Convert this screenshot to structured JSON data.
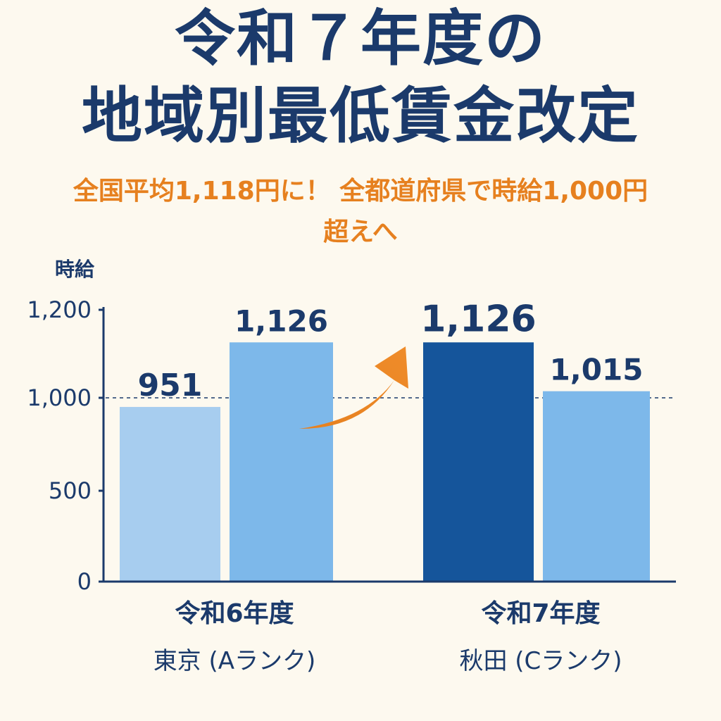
{
  "title": [
    "令和７年度の",
    "地域別最低賃金改定"
  ],
  "subtitle": [
    "全国平均1,118円に！ 全都道府県で時給1,000円",
    "超えへ"
  ],
  "colors": {
    "background": "#fdf9ef",
    "title": "#1b3a6b",
    "subtitle": "#e6801f",
    "axis": "#1b3a6b",
    "bar_light": "#a7cdef",
    "bar_mid": "#7db8ea",
    "bar_dark": "#15559b",
    "arrow": "#e6801f"
  },
  "chart_data": {
    "type": "bar",
    "ylabel": "時給",
    "yticks": [
      0,
      500,
      1000,
      1200
    ],
    "ytick_labels": [
      "0",
      "500",
      "1,000",
      "1,200"
    ],
    "reference_line": 1000,
    "groups": [
      {
        "label": "令和6年度",
        "sublabel": "東京 (Aランク)",
        "bars": [
          {
            "value": 951,
            "label": "951",
            "color": "#a7cdef"
          },
          {
            "value": 1126,
            "label": "1,126",
            "color": "#7db8ea"
          }
        ]
      },
      {
        "label": "令和7年度",
        "sublabel": "秋田 (Cランク)",
        "bars": [
          {
            "value": 1126,
            "label": "1,126",
            "color": "#15559b"
          },
          {
            "value": 1015,
            "label": "1,015",
            "color": "#7db8ea"
          }
        ]
      }
    ]
  }
}
